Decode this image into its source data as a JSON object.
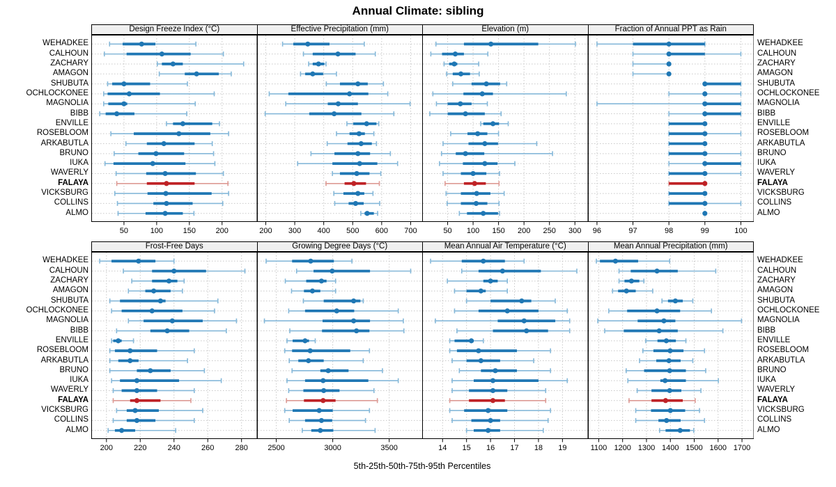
{
  "title": "Annual Climate: sibling",
  "caption": "5th-25th-50th-75th-95th Percentiles",
  "highlight_station": "FALAYA",
  "colors": {
    "series": "#1f77b4",
    "series_light": "#85b8d9",
    "highlight": "#bf2226",
    "highlight_light": "#dd9a94",
    "grid": "#c8c8c8",
    "strip_bg": "#f0f0f0",
    "border": "#000000"
  },
  "stations": [
    "WEHADKEE",
    "CALHOUN",
    "ZACHARY",
    "AMAGON",
    "SHUBUTA",
    "OCHLOCKONEE",
    "MAGNOLIA",
    "BIBB",
    "ENVILLE",
    "ROSEBLOOM",
    "ARKABUTLA",
    "BRUNO",
    "IUKA",
    "WAVERLY",
    "FALAYA",
    "VICKSBURG",
    "COLLINS",
    "ALMO"
  ],
  "chart_data": {
    "type": "dotplot-intervals",
    "percentiles": [
      5,
      25,
      50,
      75,
      95
    ],
    "grid": true,
    "layout": "2 rows x 4 columns, station labels on both sides, FALAYA highlighted in red",
    "panels": [
      {
        "title": "Design Freeze Index (°C)",
        "row": 0,
        "col": 0,
        "xlim": [
          0,
          253
        ],
        "ticks": [
          50,
          100,
          150,
          200
        ],
        "values": [
          [
            28,
            48,
            77,
            98,
            160
          ],
          [
            20,
            54,
            108,
            152,
            202
          ],
          [
            101,
            108,
            125,
            140,
            233
          ],
          [
            104,
            143,
            161,
            195,
            214
          ],
          [
            25,
            32,
            50,
            90,
            147
          ],
          [
            19,
            25,
            58,
            105,
            188
          ],
          [
            19,
            26,
            50,
            55,
            159
          ],
          [
            13,
            22,
            39,
            66,
            146
          ],
          [
            115,
            125,
            140,
            185,
            196
          ],
          [
            30,
            65,
            134,
            182,
            210
          ],
          [
            53,
            85,
            111,
            158,
            185
          ],
          [
            35,
            72,
            99,
            142,
            187
          ],
          [
            21,
            34,
            94,
            144,
            189
          ],
          [
            38,
            84,
            113,
            160,
            202
          ],
          [
            39,
            85,
            115,
            158,
            209
          ],
          [
            36,
            86,
            114,
            184,
            210
          ],
          [
            40,
            95,
            115,
            155,
            201
          ],
          [
            41,
            83,
            113,
            140,
            157
          ]
        ]
      },
      {
        "title": "Effective Precipitation (mm)",
        "row": 0,
        "col": 1,
        "xlim": [
          170,
          741
        ],
        "ticks": [
          200,
          300,
          400,
          500,
          600,
          700
        ],
        "values": [
          [
            258,
            295,
            345,
            420,
            540
          ],
          [
            330,
            362,
            449,
            510,
            578
          ],
          [
            348,
            362,
            382,
            402,
            408
          ],
          [
            320,
            336,
            362,
            398,
            444
          ],
          [
            409,
            456,
            518,
            552,
            606
          ],
          [
            212,
            278,
            489,
            554,
            621
          ],
          [
            269,
            414,
            450,
            518,
            698
          ],
          [
            198,
            350,
            436,
            530,
            642
          ],
          [
            480,
            502,
            548,
            582,
            590
          ],
          [
            444,
            489,
            522,
            542,
            573
          ],
          [
            412,
            482,
            529,
            566,
            582
          ],
          [
            356,
            437,
            518,
            560,
            630
          ],
          [
            310,
            430,
            524,
            585,
            655
          ],
          [
            430,
            456,
            514,
            558,
            597
          ],
          [
            408,
            472,
            504,
            546,
            592
          ],
          [
            435,
            468,
            518,
            540,
            570
          ],
          [
            438,
            486,
            510,
            538,
            593
          ],
          [
            528,
            541,
            550,
            573,
            586
          ]
        ]
      },
      {
        "title": "Elevation (m)",
        "row": 0,
        "col": 2,
        "xlim": [
          0,
          325
        ],
        "ticks": [
          50,
          100,
          150,
          200,
          250,
          300
        ],
        "values": [
          [
            27,
            82,
            135,
            228,
            301
          ],
          [
            17,
            39,
            65,
            82,
            129
          ],
          [
            43,
            53,
            63,
            69,
            111
          ],
          [
            48,
            60,
            76,
            94,
            112
          ],
          [
            60,
            97,
            126,
            153,
            166
          ],
          [
            21,
            81,
            118,
            139,
            283
          ],
          [
            28,
            50,
            75,
            97,
            128
          ],
          [
            15,
            50,
            85,
            123,
            155
          ],
          [
            115,
            120,
            139,
            151,
            169
          ],
          [
            56,
            89,
            109,
            128,
            150
          ],
          [
            41,
            91,
            123,
            149,
            225
          ],
          [
            38,
            66,
            85,
            122,
            256
          ],
          [
            34,
            80,
            123,
            148,
            182
          ],
          [
            41,
            76,
            100,
            126,
            152
          ],
          [
            45,
            82,
            103,
            125,
            151
          ],
          [
            47,
            76,
            107,
            134,
            161
          ],
          [
            49,
            76,
            106,
            128,
            151
          ],
          [
            73,
            88,
            120,
            149,
            152
          ]
        ]
      },
      {
        "title": "Fraction of Annual PPT as Rain",
        "row": 0,
        "col": 3,
        "xlim": [
          95.75,
          100.35
        ],
        "ticks": [
          96,
          97,
          98,
          99,
          100
        ],
        "values": [
          [
            96,
            97,
            98,
            99,
            99
          ],
          [
            97,
            98,
            98,
            99,
            100
          ],
          [
            97,
            98,
            98,
            98,
            98
          ],
          [
            97,
            98,
            98,
            98,
            98
          ],
          [
            99,
            99,
            99,
            100,
            100
          ],
          [
            98,
            99,
            99,
            99,
            100
          ],
          [
            96,
            99,
            99,
            100,
            100
          ],
          [
            98,
            99,
            99,
            100,
            100
          ],
          [
            98,
            98,
            99,
            99,
            99
          ],
          [
            98,
            98,
            99,
            99,
            100
          ],
          [
            98,
            98,
            99,
            99,
            99
          ],
          [
            98,
            98,
            99,
            99,
            100
          ],
          [
            98,
            99,
            99,
            100,
            100
          ],
          [
            98,
            98,
            99,
            99,
            100
          ],
          [
            98,
            98,
            99,
            99,
            99
          ],
          [
            98,
            98,
            99,
            99,
            99
          ],
          [
            98,
            98,
            99,
            99,
            100
          ],
          [
            99,
            99,
            99,
            99,
            99
          ]
        ]
      },
      {
        "title": "Frost-Free Days",
        "row": 1,
        "col": 0,
        "xlim": [
          191,
          289
        ],
        "ticks": [
          200,
          220,
          240,
          260,
          280
        ],
        "values": [
          [
            196,
            203,
            219,
            229,
            240
          ],
          [
            210,
            227,
            240,
            259,
            282
          ],
          [
            215,
            227,
            237,
            242,
            246
          ],
          [
            213,
            223,
            228,
            238,
            245
          ],
          [
            202,
            208,
            232,
            235,
            266
          ],
          [
            203,
            209,
            227,
            245,
            264
          ],
          [
            213,
            222,
            239,
            257,
            277
          ],
          [
            206,
            226,
            236,
            249,
            271
          ],
          [
            203,
            204,
            207,
            209,
            216
          ],
          [
            202,
            205,
            214,
            230,
            252
          ],
          [
            202,
            207,
            214,
            219,
            248
          ],
          [
            202,
            218,
            226,
            238,
            258
          ],
          [
            203,
            208,
            218,
            243,
            268
          ],
          [
            204,
            209,
            218,
            230,
            252
          ],
          [
            204,
            214,
            218,
            232,
            250
          ],
          [
            206,
            212,
            217,
            231,
            257
          ],
          [
            204,
            212,
            218,
            229,
            252
          ],
          [
            201,
            205,
            209,
            217,
            241
          ]
        ]
      },
      {
        "title": "Growing Degree Days (°C)",
        "row": 1,
        "col": 1,
        "xlim": [
          2330,
          3795
        ],
        "ticks": [
          2500,
          3000,
          3500
        ],
        "values": [
          [
            2410,
            2640,
            2805,
            3010,
            3170
          ],
          [
            2680,
            2830,
            2995,
            3330,
            3690
          ],
          [
            2580,
            2765,
            2900,
            2945,
            3025
          ],
          [
            2635,
            2745,
            2820,
            2890,
            3025
          ],
          [
            2740,
            2920,
            3185,
            3245,
            3270
          ],
          [
            2610,
            2755,
            3035,
            3190,
            3580
          ],
          [
            2395,
            2910,
            3185,
            3330,
            3625
          ],
          [
            2620,
            2905,
            3210,
            3325,
            3630
          ],
          [
            2595,
            2645,
            2755,
            2790,
            2845
          ],
          [
            2575,
            2640,
            2800,
            3155,
            3325
          ],
          [
            2615,
            2695,
            2785,
            2920,
            3270
          ],
          [
            2640,
            2890,
            2960,
            3140,
            3440
          ],
          [
            2595,
            2755,
            2915,
            3315,
            3580
          ],
          [
            2610,
            2740,
            2920,
            3060,
            3365
          ],
          [
            2590,
            2745,
            2915,
            3025,
            3395
          ],
          [
            2575,
            2645,
            2880,
            3000,
            3325
          ],
          [
            2615,
            2755,
            2900,
            2995,
            3290
          ],
          [
            2730,
            2810,
            2890,
            3005,
            3375
          ]
        ]
      },
      {
        "title": "Mean Annual Air Temperature (°C)",
        "row": 1,
        "col": 2,
        "xlim": [
          13.15,
          20.05
        ],
        "ticks": [
          14,
          15,
          16,
          17,
          18,
          19
        ],
        "values": [
          [
            13.5,
            14.8,
            15.7,
            16.6,
            17.4
          ],
          [
            14.8,
            15.5,
            16.5,
            18.1,
            19.6
          ],
          [
            14.2,
            15.7,
            16.0,
            16.3,
            16.7
          ],
          [
            14.5,
            15.0,
            15.6,
            15.8,
            16.7
          ],
          [
            15.0,
            16.0,
            17.3,
            17.7,
            18.7
          ],
          [
            14.5,
            15.5,
            16.7,
            18.0,
            19.2
          ],
          [
            13.7,
            16.3,
            17.4,
            18.7,
            19.3
          ],
          [
            14.6,
            16.1,
            17.5,
            18.4,
            19.3
          ],
          [
            14.3,
            14.5,
            15.2,
            15.3,
            15.7
          ],
          [
            14.3,
            14.6,
            15.5,
            17.1,
            18.5
          ],
          [
            14.4,
            15.0,
            15.6,
            16.4,
            17.8
          ],
          [
            14.7,
            15.6,
            16.2,
            17.1,
            18.5
          ],
          [
            14.4,
            15.3,
            16.1,
            18.0,
            19.2
          ],
          [
            14.4,
            15.1,
            16.1,
            16.7,
            18.3
          ],
          [
            14.3,
            15.1,
            16.1,
            16.6,
            18.3
          ],
          [
            14.3,
            14.9,
            15.9,
            16.7,
            18.5
          ],
          [
            14.4,
            15.2,
            16.0,
            16.4,
            18.4
          ],
          [
            15.0,
            15.3,
            15.9,
            16.4,
            18.2
          ]
        ]
      },
      {
        "title": "Mean Annual Precipitation (mm)",
        "row": 1,
        "col": 3,
        "xlim": [
          1055,
          1748
        ],
        "ticks": [
          1100,
          1200,
          1300,
          1400,
          1500,
          1600,
          1700
        ],
        "values": [
          [
            1090,
            1105,
            1170,
            1265,
            1397
          ],
          [
            1185,
            1234,
            1344,
            1431,
            1590
          ],
          [
            1185,
            1208,
            1237,
            1270,
            1289
          ],
          [
            1158,
            1181,
            1216,
            1255,
            1326
          ],
          [
            1365,
            1390,
            1421,
            1452,
            1494
          ],
          [
            1142,
            1219,
            1344,
            1441,
            1572
          ],
          [
            1096,
            1263,
            1373,
            1421,
            1698
          ],
          [
            1125,
            1205,
            1353,
            1431,
            1620
          ],
          [
            1297,
            1346,
            1383,
            1423,
            1465
          ],
          [
            1285,
            1329,
            1399,
            1455,
            1543
          ],
          [
            1271,
            1341,
            1394,
            1443,
            1494
          ],
          [
            1215,
            1290,
            1397,
            1465,
            1548
          ],
          [
            1222,
            1358,
            1378,
            1465,
            1601
          ],
          [
            1261,
            1321,
            1397,
            1446,
            1528
          ],
          [
            1227,
            1321,
            1380,
            1452,
            1504
          ],
          [
            1255,
            1319,
            1400,
            1462,
            1522
          ],
          [
            1255,
            1350,
            1384,
            1443,
            1543
          ],
          [
            1355,
            1380,
            1441,
            1482,
            1498
          ]
        ]
      }
    ]
  }
}
